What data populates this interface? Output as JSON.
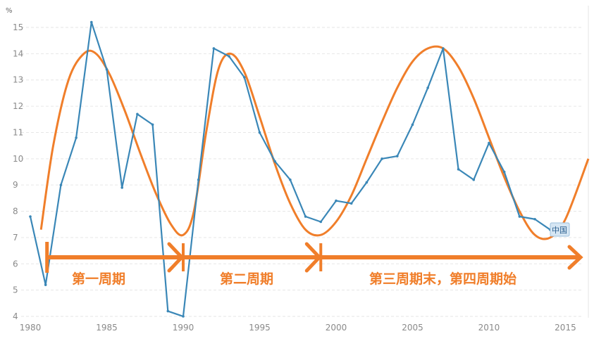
{
  "chart_data": {
    "type": "line",
    "title": "",
    "xlabel": "",
    "ylabel": "",
    "unit_label": "%",
    "xlim": [
      1980,
      2016.5
    ],
    "ylim": [
      4,
      15.5
    ],
    "x_ticks": [
      1980,
      1985,
      1990,
      1995,
      2000,
      2005,
      2010,
      2015
    ],
    "y_ticks": [
      4,
      5,
      6,
      7,
      8,
      9,
      10,
      11,
      12,
      13,
      14,
      15
    ],
    "grid": true,
    "series": [
      {
        "name": "中国",
        "color": "#3a87b7",
        "x": [
          1980,
          1981,
          1982,
          1983,
          1984,
          1985,
          1986,
          1987,
          1988,
          1989,
          1990,
          1991,
          1992,
          1993,
          1994,
          1995,
          1996,
          1997,
          1998,
          1999,
          2000,
          2001,
          2002,
          2003,
          2004,
          2005,
          2006,
          2007,
          2008,
          2009,
          2010,
          2011,
          2012,
          2013,
          2014
        ],
        "y": [
          7.8,
          5.2,
          9.0,
          10.8,
          15.2,
          13.4,
          8.9,
          11.7,
          11.3,
          4.2,
          4.0,
          9.2,
          14.2,
          13.9,
          13.1,
          11.0,
          9.9,
          9.2,
          7.8,
          7.6,
          8.4,
          8.3,
          9.1,
          10.0,
          10.1,
          11.3,
          12.7,
          14.2,
          9.6,
          9.2,
          10.6,
          9.5,
          7.8,
          7.7,
          7.3
        ]
      },
      {
        "name": "",
        "color": "#f07e2a",
        "x": [
          1980.7,
          1981.5,
          1982.5,
          1983.5,
          1984.3,
          1985.2,
          1986.2,
          1987.2,
          1988.2,
          1989.2,
          1990,
          1990.7,
          1991.5,
          1992.3,
          1993.1,
          1994,
          1995,
          1996,
          1997,
          1998,
          1999,
          2000,
          2001,
          2002,
          2003,
          2004,
          2005,
          2006,
          2007,
          2008,
          2009,
          2010,
          2011,
          2012,
          2013,
          2014,
          2015,
          2016.5
        ],
        "y": [
          7.3,
          10.5,
          13.0,
          14.0,
          14.0,
          13.2,
          11.8,
          10.2,
          8.7,
          7.5,
          7.1,
          8.0,
          11.0,
          13.4,
          14.0,
          13.3,
          11.6,
          9.8,
          8.3,
          7.3,
          7.1,
          7.6,
          8.6,
          10.0,
          11.4,
          12.7,
          13.7,
          14.2,
          14.2,
          13.5,
          12.3,
          10.8,
          9.3,
          8.0,
          7.1,
          7.0,
          7.7,
          10.0
        ]
      }
    ],
    "annotations": {
      "phase_labels": [
        "第一周期",
        "第二周期",
        "第三周期末，第四周期始"
      ],
      "arrow_marks_years": [
        1981,
        1990,
        1999
      ]
    }
  }
}
